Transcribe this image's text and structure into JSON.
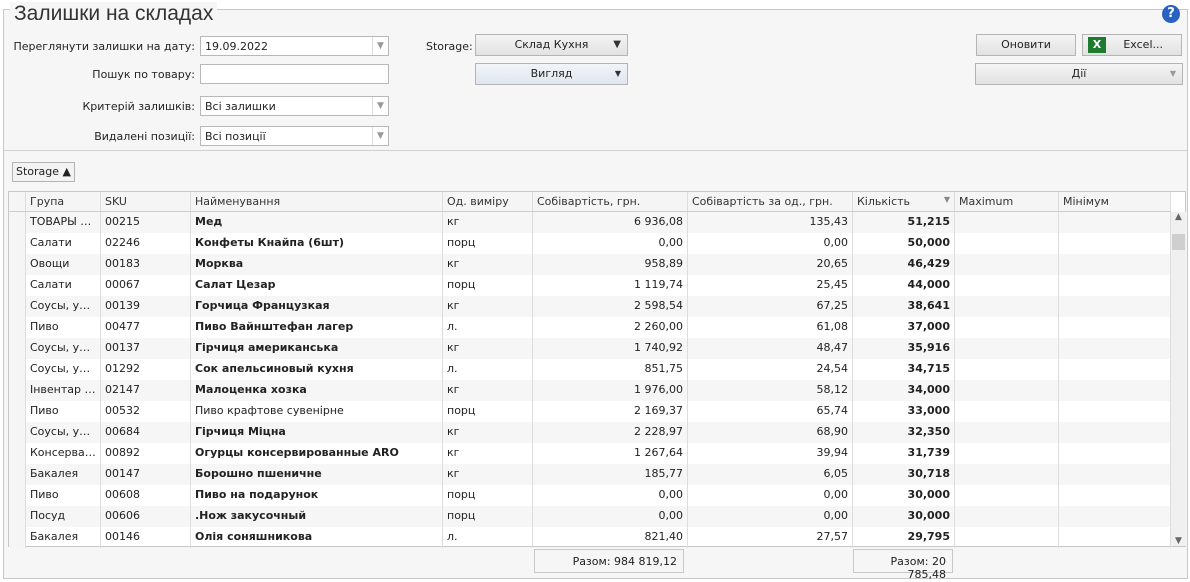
{
  "title": "Залишки на складах",
  "filters": {
    "date_label": "Переглянути залишки на дату:",
    "date_value": "19.09.2022",
    "search_label": "Пошук по товару:",
    "search_value": "",
    "criteria_label": "Критерій залишків:",
    "criteria_value": "Всі залишки",
    "deleted_label": "Видалені позиції:",
    "deleted_value": "Всі позиції",
    "storage_label": "Storage:",
    "storage_value": "Склад Кухня",
    "view_label": "Вигляд"
  },
  "toolbar": {
    "refresh": "Оновити",
    "excel": "Excel...",
    "actions": "Дії"
  },
  "group_chip": "Storage ▲",
  "columns": [
    "Група",
    "SKU",
    "Найменування",
    "Од. виміру",
    "Собівартість, грн.",
    "Собівартість за од., грн.",
    "Кількість",
    "Maximum",
    "Мінімум"
  ],
  "rows": [
    [
      "ТОВАРЫ К...",
      "00215",
      "Мед",
      "кг",
      "6 936,08",
      "135,43",
      "51,215"
    ],
    [
      "Салати",
      "02246",
      "Конфеты Кнайпа (6шт)",
      "порц",
      "0,00",
      "0,00",
      "50,000"
    ],
    [
      "Овощи",
      "00183",
      "Морква",
      "кг",
      "958,89",
      "20,65",
      "46,429"
    ],
    [
      "Салати",
      "00067",
      "Салат Цезар",
      "порц",
      "1 119,74",
      "25,45",
      "44,000"
    ],
    [
      "Соусы, укс...",
      "00139",
      "Горчица Французкая",
      "кг",
      "2 598,54",
      "67,25",
      "38,641"
    ],
    [
      "Пиво",
      "00477",
      "Пиво Вайнштефан лагер",
      "л.",
      "2 260,00",
      "61,08",
      "37,000"
    ],
    [
      "Соусы, укс...",
      "00137",
      "Гірчиця американська",
      "кг",
      "1 740,92",
      "48,47",
      "35,916"
    ],
    [
      "Соусы, укс...",
      "01292",
      "Сок апельсиновый кухня",
      "л.",
      "851,75",
      "24,54",
      "34,715"
    ],
    [
      "Інвентар К...",
      "02147",
      "Малоценка хозка",
      "кг",
      "1 976,00",
      "58,12",
      "34,000"
    ],
    [
      "Пиво",
      "00532",
      "Пиво крафтове сувенірне",
      "порц",
      "2 169,37",
      "65,74",
      "33,000"
    ],
    [
      "Соусы, укс...",
      "00684",
      "Гірчиця Міцна",
      "кг",
      "2 228,97",
      "68,90",
      "32,350"
    ],
    [
      "Консервац...",
      "00892",
      "Огурцы консервированные ARO",
      "кг",
      "1 267,64",
      "39,94",
      "31,739"
    ],
    [
      "Бакалея",
      "00147",
      "Борошно пшеничне",
      "кг",
      "185,77",
      "6,05",
      "30,718"
    ],
    [
      "Пиво",
      "00608",
      "Пиво на подарунок",
      "порц",
      "0,00",
      "0,00",
      "30,000"
    ],
    [
      "Посуд",
      "00606",
      ".Нож закусочный",
      "порц",
      "0,00",
      "0,00",
      "30,000"
    ],
    [
      "Бакалея",
      "00146",
      "Олія соняшникова",
      "л.",
      "821,40",
      "27,57",
      "29,795"
    ]
  ],
  "totals": {
    "cost": "Разом: 984 819,12",
    "qty": "Разом: 20 785,48"
  },
  "colors": {
    "help": "#2a62c0",
    "excel": "#1d7a2e"
  }
}
